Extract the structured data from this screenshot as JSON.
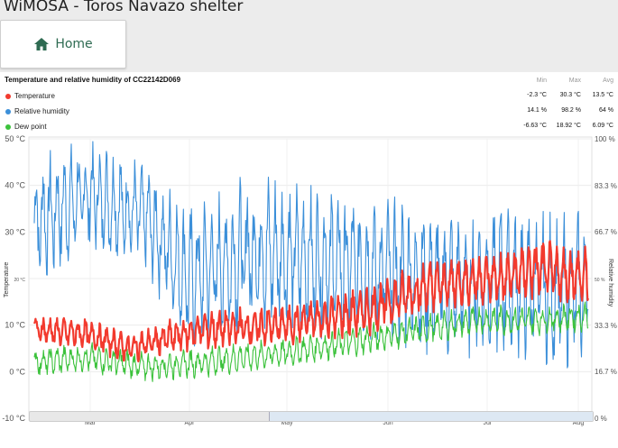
{
  "app": {
    "title": "WiMOSA - Toros Navazo shelter"
  },
  "nav": {
    "home_label": "Home",
    "home_icon": "home-icon"
  },
  "chart": {
    "title": "Temperature and relative humidity of CC22142D069",
    "stats_headers": [
      "Min",
      "Max",
      "Avg"
    ],
    "rows": [
      {
        "label": "Temperature",
        "color": "#f23a2e",
        "min": "-2.3 °C",
        "max": "30.3 °C",
        "avg": "13.5 °C"
      },
      {
        "label": "Relative humidity",
        "color": "#3b8fd9",
        "min": "14.1 %",
        "max": "98.2 %",
        "avg": "64 %"
      },
      {
        "label": "Dew point",
        "color": "#3cc23c",
        "min": "-6.63 °C",
        "max": "18.92 °C",
        "avg": "6.09 °C"
      }
    ],
    "left_axis_label": "Temperature",
    "right_axis_label": "Relative humidity",
    "left_ticks": [
      "50 °C",
      "40 °C",
      "30 °C",
      "20 °C",
      "10 °C",
      "0 °C",
      "-10 °C"
    ],
    "right_ticks": [
      "100 %",
      "83.3 %",
      "66.7 %",
      "50 %",
      "33.3 %",
      "16.7 %",
      "0 %"
    ],
    "month_ticks": [
      "Mar",
      "Apr",
      "May",
      "Jun",
      "Jul",
      "Aug"
    ]
  },
  "chart_data": {
    "type": "line",
    "x_months": [
      "Mar",
      "Apr",
      "May",
      "Jun",
      "Jul",
      "Aug"
    ],
    "y_left_range": [
      -10,
      50
    ],
    "y_right_range": [
      0,
      100
    ],
    "grid": true,
    "series": [
      {
        "name": "Temperature",
        "axis": "left",
        "color": "#f23a2e",
        "trend": [
          [
            0,
            9
          ],
          [
            0.1,
            8
          ],
          [
            0.17,
            5
          ],
          [
            0.3,
            9
          ],
          [
            0.45,
            10
          ],
          [
            0.6,
            13
          ],
          [
            0.7,
            18
          ],
          [
            0.8,
            20
          ],
          [
            0.85,
            20
          ],
          [
            0.9,
            22
          ],
          [
            1,
            20
          ]
        ],
        "amp": [
          3,
          3,
          3,
          4,
          4,
          4,
          5,
          5,
          5,
          6,
          6
        ]
      },
      {
        "name": "Relative humidity",
        "axis": "right",
        "color": "#3b8fd9",
        "trend": [
          [
            0,
            70
          ],
          [
            0.1,
            80
          ],
          [
            0.2,
            72
          ],
          [
            0.28,
            50
          ],
          [
            0.4,
            60
          ],
          [
            0.55,
            55
          ],
          [
            0.65,
            52
          ],
          [
            0.75,
            48
          ],
          [
            0.85,
            50
          ],
          [
            0.95,
            45
          ],
          [
            1,
            48
          ]
        ],
        "amp": [
          22,
          18,
          18,
          25,
          26,
          25,
          24,
          25,
          25,
          25,
          25
        ]
      },
      {
        "name": "Dew point",
        "axis": "left",
        "color": "#3cc23c",
        "trend": [
          [
            0,
            2
          ],
          [
            0.1,
            3
          ],
          [
            0.2,
            1
          ],
          [
            0.3,
            2
          ],
          [
            0.45,
            4
          ],
          [
            0.6,
            7
          ],
          [
            0.7,
            9
          ],
          [
            0.8,
            11
          ],
          [
            0.9,
            11
          ],
          [
            1,
            12
          ]
        ],
        "amp": [
          3,
          3,
          3,
          3,
          3,
          3,
          3,
          3,
          3,
          3
        ]
      }
    ]
  }
}
